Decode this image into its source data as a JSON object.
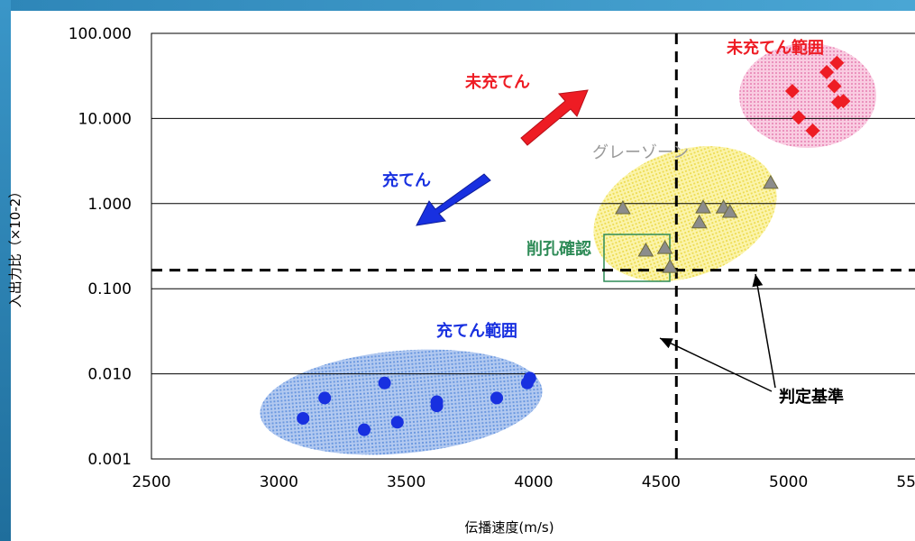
{
  "colors": {
    "unfilled": "#ee1c24",
    "filled": "#1830e0",
    "gray": "#8c8c8c",
    "drill": "#2e8b57",
    "threshold": "#000000",
    "unfilled_zone": "#f29ac6",
    "filled_zone": "#3f78d8",
    "gray_zone": "#f2e24d",
    "frame": "#2e86b8"
  },
  "chart_data": {
    "type": "scatter",
    "xlabel": "伝播速度(m/s)",
    "ylabel": "入出力比（×10-2）",
    "xlim": [
      2500,
      5500
    ],
    "ylim": [
      0.001,
      100
    ],
    "y_scale": "log",
    "x_ticks": [
      2500,
      3000,
      3500,
      4000,
      4500,
      5000,
      5500
    ],
    "x_tick_labels": [
      "2500",
      "3000",
      "3500",
      "4000",
      "4500",
      "5000",
      "5500"
    ],
    "y_ticks": [
      0.001,
      0.01,
      0.1,
      1,
      10,
      100
    ],
    "y_tick_labels": [
      "0.001",
      "0.010",
      "0.100",
      "1.000",
      "10.000",
      "100.000"
    ],
    "grid": "horizontal",
    "series": [
      {
        "name": "充てん範囲",
        "marker": "circle",
        "color": "#1830e0",
        "points": [
          [
            3095,
            0.003
          ],
          [
            3180,
            0.0052
          ],
          [
            3335,
            0.0022
          ],
          [
            3415,
            0.0078
          ],
          [
            3465,
            0.0027
          ],
          [
            3620,
            0.0042
          ],
          [
            3620,
            0.0047
          ],
          [
            3855,
            0.0052
          ],
          [
            3975,
            0.0078
          ],
          [
            3985,
            0.0089
          ]
        ]
      },
      {
        "name": "グレーゾーン",
        "marker": "triangle",
        "color": "#8c8c8c",
        "points": [
          [
            4350,
            0.88
          ],
          [
            4440,
            0.28
          ],
          [
            4515,
            0.3
          ],
          [
            4535,
            0.18
          ],
          [
            4650,
            0.6
          ],
          [
            4665,
            0.9
          ],
          [
            4745,
            0.9
          ],
          [
            4770,
            0.8
          ],
          [
            4930,
            1.75
          ]
        ]
      },
      {
        "name": "未充てん範囲",
        "marker": "diamond",
        "color": "#ee1c24",
        "points": [
          [
            5015,
            21
          ],
          [
            5040,
            10.3
          ],
          [
            5095,
            7.2
          ],
          [
            5150,
            35
          ],
          [
            5180,
            24
          ],
          [
            5190,
            45
          ],
          [
            5195,
            15.5
          ],
          [
            5215,
            16
          ]
        ]
      }
    ],
    "thresholds": {
      "x": 4560,
      "y": 0.165
    },
    "annotations": {
      "unfilled_arrow": "未充てん",
      "filled_arrow": "充てん",
      "gray_zone": "グレーゾーン",
      "drill_check": "削孔確認",
      "unfilled_range": "未充てん範囲",
      "filled_range": "充てん範囲",
      "criterion": "判定基準"
    }
  }
}
